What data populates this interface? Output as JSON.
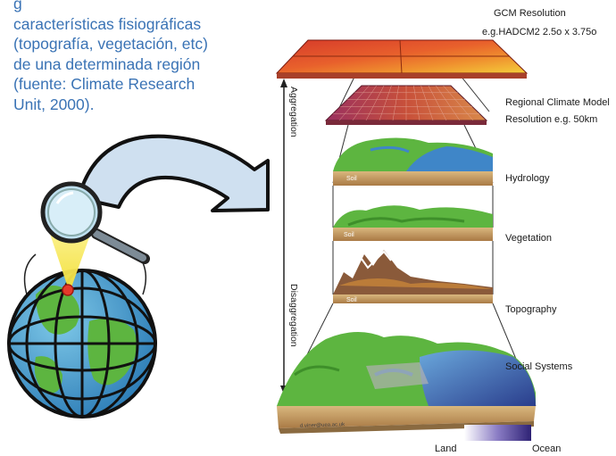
{
  "caption": {
    "lines": [
      "g",
      "características fisiográficas",
      "(topografía, vegetación, etc)",
      "de una determinada región",
      "(fuente: Climate Research",
      "Unit, 2000)."
    ]
  },
  "labels": {
    "gcm_title": "GCM Resolution",
    "gcm_res": "e.g.HADCM2 2.5o x 3.75o",
    "rcm_title": "Regional Climate Model",
    "rcm_res": "Resolution e.g. 50km",
    "hydrology": "Hydrology",
    "vegetation": "Vegetation",
    "topography": "Topography",
    "social": "Social Systems",
    "land": "Land",
    "ocean": "Ocean",
    "aggregation": "Aggregation",
    "disaggregation": "Disaggregation",
    "soil": "Soil",
    "email": "d.viner@uea.ac.uk"
  },
  "colors": {
    "caption": "#3a73b5",
    "gcm_red": "#d63a2a",
    "gcm_orange": "#ef8f2e",
    "gcm_yellow": "#f4cf3a",
    "rcm": "#b43a4a",
    "grass": "#5db540",
    "water": "#3f86c8",
    "soil": "#c9a06a",
    "ocean_dark": "#3b2f86",
    "arrow_fill": "#cfe0f0"
  }
}
